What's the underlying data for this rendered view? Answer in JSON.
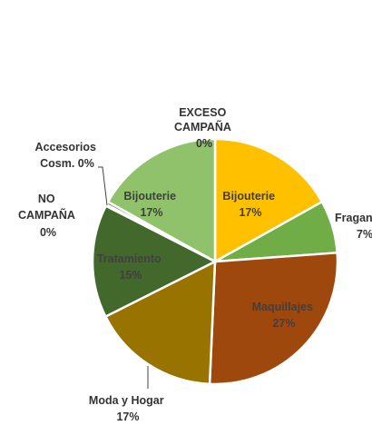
{
  "chart_data": {
    "type": "pie",
    "title": "",
    "slices": [
      {
        "label": "EXCESO CAMPAÑA",
        "value": 0,
        "pct_label": "0%",
        "color": "#f2f2f2"
      },
      {
        "label": "Bijouterie",
        "value": 17,
        "pct_label": "17%",
        "color": "#ffc000"
      },
      {
        "label": "Fragan",
        "value": 7,
        "pct_label": "7%",
        "color": "#70ad47"
      },
      {
        "label": "Maquillajes",
        "value": 27,
        "pct_label": "27%",
        "color": "#9e480e"
      },
      {
        "label": "Moda y Hogar",
        "value": 17,
        "pct_label": "17%",
        "color": "#997300"
      },
      {
        "label": "Tratamiento",
        "value": 15,
        "pct_label": "15%",
        "color": "#43682b"
      },
      {
        "label": "NO CAMPAÑA",
        "value": 0.2,
        "pct_label": "0%",
        "color": "#ffe699"
      },
      {
        "label": "Accesorios Cosm.",
        "value": 0.4,
        "pct_label": "0%",
        "color": "#5b6b3a"
      },
      {
        "label": "Bijouterie",
        "value": 17,
        "pct_label": "17%",
        "color": "#8fc26a"
      }
    ]
  }
}
